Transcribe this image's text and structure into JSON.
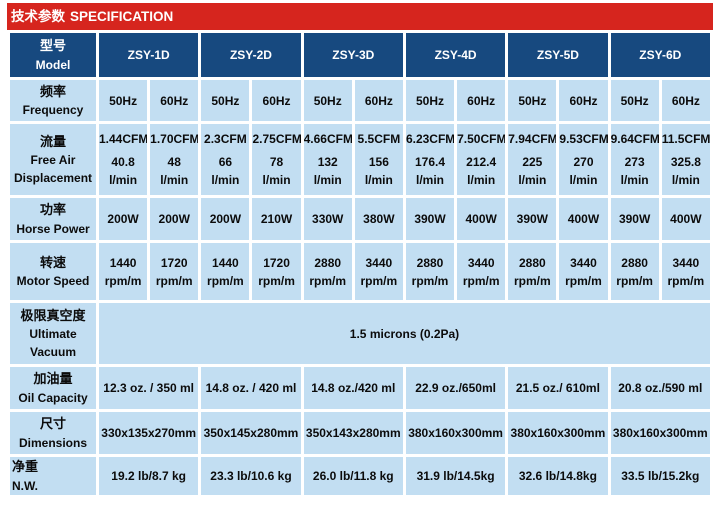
{
  "banner": {
    "title_zh": "技术参数",
    "title_en": "SPECIFICATION"
  },
  "colors": {
    "banner_red": "#D6251E",
    "header_navy": "#17497F",
    "cell_blue": "#C2DEF2"
  },
  "table": {
    "model_label": {
      "zh": "型号",
      "en": "Model"
    },
    "models": [
      "ZSY-1D",
      "ZSY-2D",
      "ZSY-3D",
      "ZSY-4D",
      "ZSY-5D",
      "ZSY-6D"
    ],
    "frequency": {
      "label_zh": "频率",
      "label_en": "Frequency",
      "values": [
        "50Hz",
        "60Hz",
        "50Hz",
        "60Hz",
        "50Hz",
        "60Hz",
        "50Hz",
        "60Hz",
        "50Hz",
        "60Hz",
        "50Hz",
        "60Hz"
      ]
    },
    "flow": {
      "label_zh": "流量",
      "label_en_1": "Free Air",
      "label_en_2": "Displacement",
      "cfm": [
        "1.44CFM",
        "1.70CFM",
        "2.3CFM",
        "2.75CFM",
        "4.66CFM",
        "5.5CFM",
        "6.23CFM",
        "7.50CFM",
        "7.94CFM",
        "9.53CFM",
        "9.64CFM",
        "11.5CFM"
      ],
      "lmin": [
        "40.8",
        "48",
        "66",
        "78",
        "132",
        "156",
        "176.4",
        "212.4",
        "225",
        "270",
        "273",
        "325.8"
      ],
      "unit": "l/min"
    },
    "power": {
      "label_zh": "功率",
      "label_en": "Horse Power",
      "values": [
        "200W",
        "200W",
        "200W",
        "210W",
        "330W",
        "380W",
        "390W",
        "400W",
        "390W",
        "400W",
        "390W",
        "400W"
      ]
    },
    "speed": {
      "label_zh": "转速",
      "label_en": "Motor Speed",
      "values": [
        "1440",
        "1720",
        "1440",
        "1720",
        "2880",
        "3440",
        "2880",
        "3440",
        "2880",
        "3440",
        "2880",
        "3440"
      ],
      "unit": "rpm/m"
    },
    "vacuum": {
      "label_zh": "极限真空度",
      "label_en_1": "Ultimate",
      "label_en_2": "Vacuum",
      "value": "1.5 microns (0.2Pa)"
    },
    "oil": {
      "label_zh": "加油量",
      "label_en": "Oil Capacity",
      "values": [
        "12.3 oz. / 350 ml",
        "14.8 oz. / 420 ml",
        "14.8 oz./420 ml",
        "22.9 oz./650ml",
        "21.5 oz./ 610ml",
        "20.8 oz./590 ml"
      ]
    },
    "dimensions": {
      "label_zh": "尺寸",
      "label_en": "Dimensions",
      "values": [
        "330x135x270mm",
        "350x145x280mm",
        "350x143x280mm",
        "380x160x300mm",
        "380x160x300mm",
        "380x160x300mm"
      ]
    },
    "nw": {
      "label_zh": "净重",
      "label_en": "N.W.",
      "values": [
        "19.2 lb/8.7 kg",
        "23.3 lb/10.6 kg",
        "26.0 lb/11.8 kg",
        "31.9 lb/14.5kg",
        "32.6 lb/14.8kg",
        "33.5 lb/15.2kg"
      ]
    }
  }
}
